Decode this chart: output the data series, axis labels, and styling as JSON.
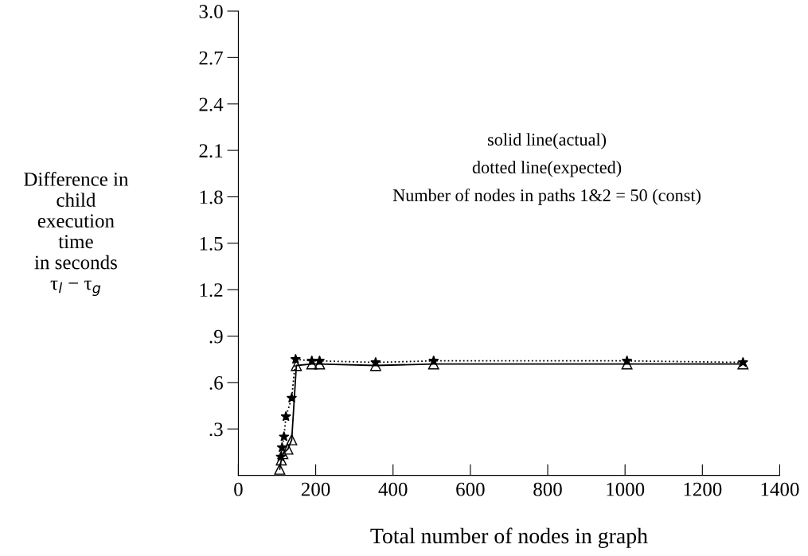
{
  "chart_data": {
    "type": "line",
    "xlabel": "Total number of nodes in graph",
    "ylabel": "Difference in\nchild\nexecution\ntime\nin seconds\nτ$_{l}$ − τ$_{g}$",
    "annotations": [
      "solid line(actual)",
      "dotted line(expected)",
      "Number of nodes in paths 1&2 = 50 (const)"
    ],
    "xlim": [
      0,
      1400
    ],
    "xticks": [
      0,
      200,
      400,
      600,
      800,
      1000,
      1200,
      1400
    ],
    "ylim": [
      0,
      3.0
    ],
    "yticks": [
      {
        "value": 0.3,
        "label": ".3"
      },
      {
        "value": 0.6,
        "label": ".6"
      },
      {
        "value": 0.9,
        "label": ".9"
      },
      {
        "value": 1.2,
        "label": "1.2"
      },
      {
        "value": 1.5,
        "label": "1.5"
      },
      {
        "value": 1.8,
        "label": "1.8"
      },
      {
        "value": 2.1,
        "label": "2.1"
      },
      {
        "value": 2.4,
        "label": "2.4"
      },
      {
        "value": 2.7,
        "label": "2.7"
      },
      {
        "value": 3.0,
        "label": "3.0"
      }
    ],
    "grid": false,
    "legend": false,
    "series": [
      {
        "color": "#000000",
        "marker": "triangle",
        "line_style": "solid",
        "x": [
          107,
          111,
          115,
          128,
          138,
          150,
          190,
          210,
          355,
          505,
          1005,
          1305
        ],
        "values": [
          0.04,
          0.1,
          0.14,
          0.17,
          0.23,
          0.71,
          0.72,
          0.72,
          0.71,
          0.72,
          0.72,
          0.72
        ]
      },
      {
        "color": "#000000",
        "marker": "star",
        "line_style": "dotted",
        "x": [
          110,
          113,
          118,
          123,
          138,
          148,
          190,
          210,
          355,
          505,
          1005,
          1305
        ],
        "values": [
          0.12,
          0.18,
          0.25,
          0.38,
          0.5,
          0.75,
          0.74,
          0.74,
          0.73,
          0.74,
          0.74,
          0.73
        ]
      }
    ]
  }
}
